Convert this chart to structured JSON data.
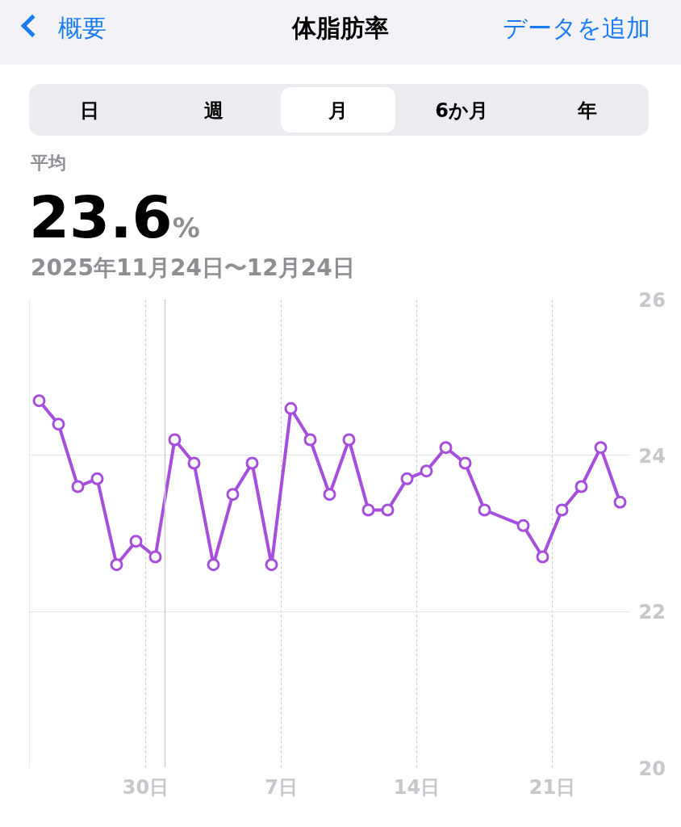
{
  "chart_data": {
    "type": "line",
    "title": "体脂肪率",
    "subtitle": "2025年11月24日〜12月24日",
    "annotations": [
      "概要",
      "データを追加",
      "日",
      "週",
      "月",
      "6か月",
      "年",
      "平均",
      "23.6%"
    ],
    "x": [
      "2025-11-24T12:00",
      "2025-11-25T12:00",
      "2025-11-26T12:00",
      "2025-11-27T12:00",
      "2025-11-28T12:00",
      "2025-11-29T12:00",
      "2025-11-30T12:00",
      "2025-12-01T12:00",
      "2025-12-02T12:00",
      "2025-12-03T12:00",
      "2025-12-04T12:00",
      "2025-12-05T12:00",
      "2025-12-06T12:00",
      "2025-12-07T12:00",
      "2025-12-08T12:00",
      "2025-12-09T12:00",
      "2025-12-10T12:00",
      "2025-12-11T12:00",
      "2025-12-12T12:00",
      "2025-12-13T12:00",
      "2025-12-14T12:00",
      "2025-12-15T12:00",
      "2025-12-16T12:00",
      "2025-12-17T12:00",
      "2025-12-19T12:00",
      "2025-12-20T12:00",
      "2025-12-21T12:00",
      "2025-12-22T12:00",
      "2025-12-23T12:00",
      "2025-12-24T12:00"
    ],
    "series": [
      {
        "color": "#a64fdc",
        "values": [
          24.7,
          24.4,
          23.6,
          23.7,
          22.6,
          22.9,
          22.7,
          24.2,
          23.9,
          22.6,
          23.5,
          23.9,
          22.6,
          24.6,
          24.2,
          23.5,
          24.2,
          23.3,
          23.3,
          23.7,
          23.8,
          24.1,
          23.9,
          23.3,
          23.1,
          22.7,
          23.3,
          23.6,
          24.1,
          23.4
        ]
      }
    ],
    "xlim": [
      "2025-11-24",
      "2025-12-25"
    ],
    "xticks": [
      {
        "value": "2025-11-30",
        "label": "30日"
      },
      {
        "value": "2025-12-07",
        "label": "7日"
      },
      {
        "value": "2025-12-14",
        "label": "14日"
      },
      {
        "value": "2025-12-21",
        "label": "21日"
      }
    ],
    "ylim": [
      20,
      26
    ],
    "yticks": [
      20,
      22,
      24,
      26
    ],
    "ref_lines": [
      {
        "axis": "x",
        "value": "2025-12-01",
        "label": null,
        "color": "#d0d0d0"
      }
    ],
    "grid": true,
    "marker": "circle",
    "line_style": "solid"
  }
}
